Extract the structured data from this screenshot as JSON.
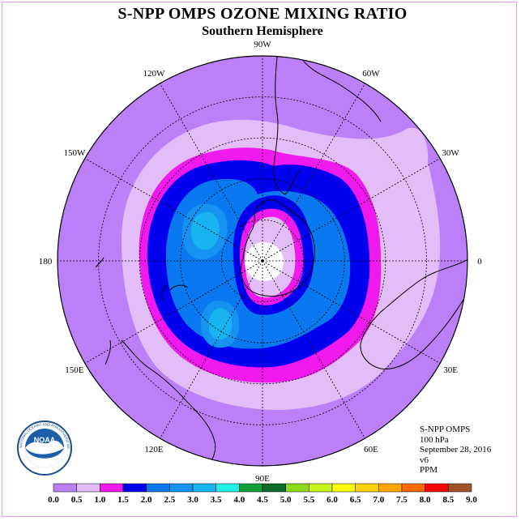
{
  "header": {
    "title": "S-NPP OMPS OZONE MIXING RATIO",
    "subtitle": "Southern Hemisphere"
  },
  "map": {
    "projection": "polar stereographic",
    "longitude_labels": [
      {
        "text": "0",
        "deg": 0
      },
      {
        "text": "30E",
        "deg": 30
      },
      {
        "text": "60E",
        "deg": 60
      },
      {
        "text": "90E",
        "deg": 90
      },
      {
        "text": "120E",
        "deg": 120
      },
      {
        "text": "150E",
        "deg": 150
      },
      {
        "text": "180",
        "deg": 180
      },
      {
        "text": "150W",
        "deg": 210
      },
      {
        "text": "120W",
        "deg": 240
      },
      {
        "text": "90W",
        "deg": 270
      },
      {
        "text": "60W",
        "deg": 300
      },
      {
        "text": "30W",
        "deg": 330
      }
    ]
  },
  "info": {
    "instrument": "S-NPP OMPS",
    "level": "100 hPa",
    "date": "September 28, 2016",
    "version": "v6",
    "units": "PPM"
  },
  "logo": {
    "text": "NOAA",
    "ring_text": "NATIONAL OCEANIC AND ATMOSPHERIC ADMINISTRATION U.S. DEPARTMENT OF COMMERCE"
  },
  "legend": {
    "ticks": [
      "0.0",
      "0.5",
      "1.0",
      "1.5",
      "2.0",
      "2.5",
      "3.0",
      "3.5",
      "4.0",
      "4.5",
      "5.0",
      "5.5",
      "6.0",
      "6.5",
      "7.0",
      "7.5",
      "8.0",
      "8.5",
      "9.0"
    ],
    "colors": [
      "#bb7ff7",
      "#e3bdf7",
      "#f019ee",
      "#0000ef",
      "#0a79ef",
      "#1693f0",
      "#18b4f2",
      "#22f0e8",
      "#0f9f3b",
      "#0a6b2a",
      "#8fd91d",
      "#c8f51c",
      "#ffff00",
      "#ffd100",
      "#ffa600",
      "#ff6a00",
      "#ff0000",
      "#a0522d"
    ]
  }
}
